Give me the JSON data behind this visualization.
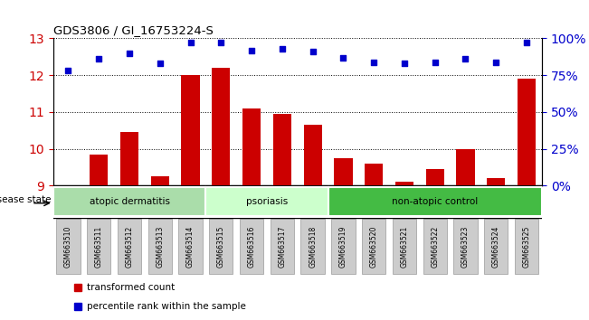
{
  "title": "GDS3806 / GI_16753224-S",
  "samples": [
    "GSM663510",
    "GSM663511",
    "GSM663512",
    "GSM663513",
    "GSM663514",
    "GSM663515",
    "GSM663516",
    "GSM663517",
    "GSM663518",
    "GSM663519",
    "GSM663520",
    "GSM663521",
    "GSM663522",
    "GSM663523",
    "GSM663524",
    "GSM663525"
  ],
  "bar_values": [
    9.0,
    9.85,
    10.45,
    9.25,
    12.0,
    12.2,
    11.1,
    10.95,
    10.65,
    9.75,
    9.6,
    9.1,
    9.45,
    10.0,
    9.2,
    11.9
  ],
  "dot_values": [
    78,
    86,
    90,
    83,
    97,
    97,
    92,
    93,
    91,
    87,
    84,
    83,
    84,
    86,
    84,
    97
  ],
  "ylim_left": [
    9,
    13
  ],
  "ylim_right": [
    0,
    100
  ],
  "yticks_left": [
    9,
    10,
    11,
    12,
    13
  ],
  "yticks_right": [
    0,
    25,
    50,
    75,
    100
  ],
  "ytick_labels_right": [
    "0%",
    "25%",
    "50%",
    "75%",
    "100%"
  ],
  "bar_color": "#cc0000",
  "dot_color": "#0000cc",
  "disease_groups": [
    {
      "label": "atopic dermatitis",
      "start": 0,
      "end": 4,
      "color": "#aaddaa"
    },
    {
      "label": "psoriasis",
      "start": 5,
      "end": 8,
      "color": "#ccffcc"
    },
    {
      "label": "non-atopic control",
      "start": 9,
      "end": 15,
      "color": "#44bb44"
    }
  ],
  "legend_bar_label": "transformed count",
  "legend_dot_label": "percentile rank within the sample",
  "disease_state_label": "disease state"
}
